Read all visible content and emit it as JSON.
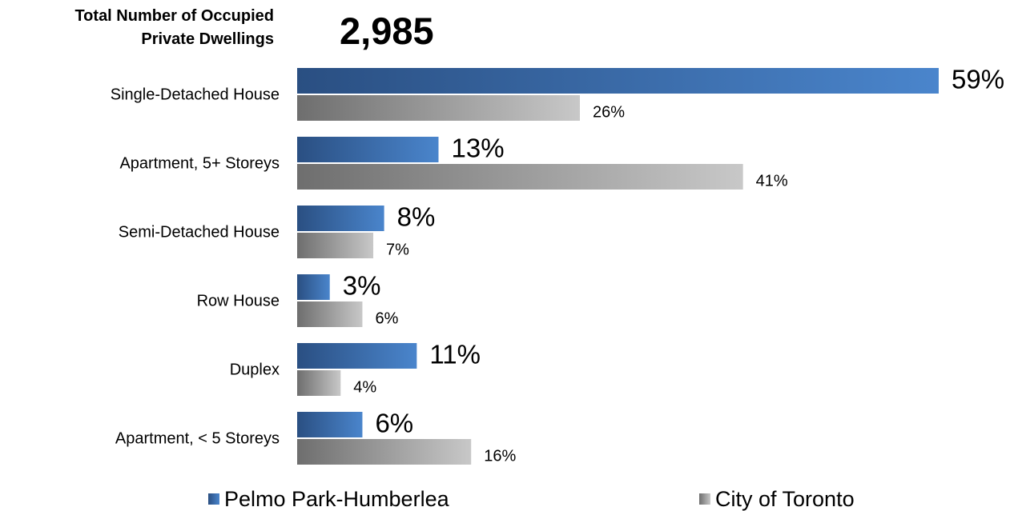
{
  "header": {
    "label_line1": "Total Number of Occupied",
    "label_line2": "Private Dwellings",
    "total": "2,985"
  },
  "colors": {
    "series1_dark": "#2a4f82",
    "series1_light": "#4a85cc",
    "series2_dark": "#6e6e6e",
    "series2_light": "#c8c8c8"
  },
  "chart_data": {
    "type": "bar",
    "orientation": "horizontal",
    "categories": [
      "Single-Detached House",
      "Apartment, 5+ Storeys",
      "Semi-Detached House",
      "Row House",
      "Duplex",
      "Apartment, < 5 Storeys"
    ],
    "series": [
      {
        "name": "Pelmo Park-Humberlea",
        "values": [
          59,
          13,
          8,
          3,
          11,
          6
        ],
        "labels": [
          "59%",
          "13%",
          "8%",
          "3%",
          "11%",
          "6%"
        ]
      },
      {
        "name": "City of Toronto",
        "values": [
          26,
          41,
          7,
          6,
          4,
          16
        ],
        "labels": [
          "26%",
          "41%",
          "7%",
          "6%",
          "4%",
          "16%"
        ]
      }
    ],
    "xlim": [
      0,
      59
    ],
    "grid": false,
    "legend": "bottom"
  }
}
